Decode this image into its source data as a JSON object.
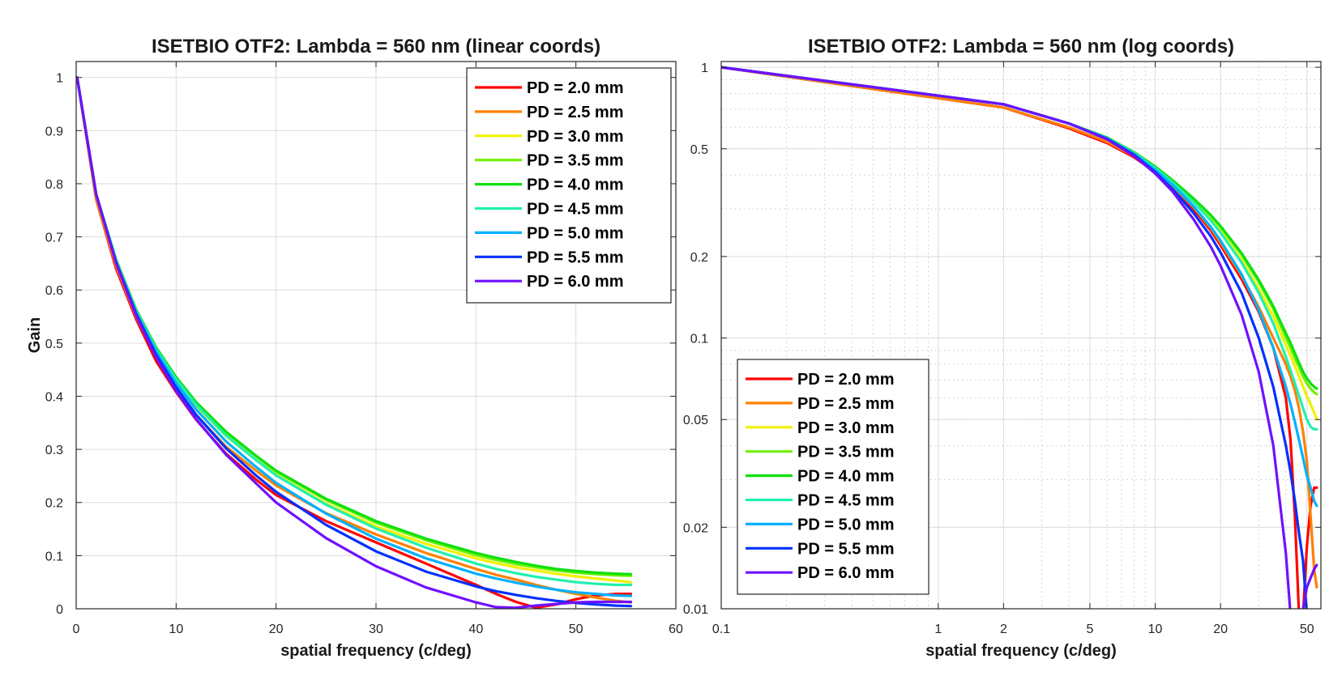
{
  "colors": {
    "PD = 2.0 mm": "#ff0000",
    "PD = 2.5 mm": "#ff8000",
    "PD = 3.0 mm": "#f0f000",
    "PD = 3.5 mm": "#70f000",
    "PD = 4.0 mm": "#10e010",
    "PD = 4.5 mm": "#20f0b0",
    "PD = 5.0 mm": "#00b0ff",
    "PD = 5.5 mm": "#0030ff",
    "PD = 6.0 mm": "#7010ff"
  },
  "chart_data": [
    {
      "type": "line",
      "title": "ISETBIO OTF2: Lambda = 560 nm (linear coords)",
      "xlabel": "spatial frequency (c/deg)",
      "ylabel": "Gain",
      "xlim": [
        0,
        60
      ],
      "ylim": [
        0,
        1.03
      ],
      "xscale": "linear",
      "yscale": "linear",
      "xticks": [
        0,
        10,
        20,
        30,
        40,
        50,
        60
      ],
      "xticklabels": [
        "0",
        "10",
        "20",
        "30",
        "40",
        "50",
        "60"
      ],
      "yticks": [
        0,
        0.1,
        0.2,
        0.3,
        0.4,
        0.5,
        0.6,
        0.7,
        0.8,
        0.9,
        1
      ],
      "yticklabels": [
        "0",
        "0.1",
        "0.2",
        "0.3",
        "0.4",
        "0.5",
        "0.6",
        "0.7",
        "0.8",
        "0.9",
        "1"
      ],
      "grid": true,
      "legend": "top-right",
      "x": [
        0.1,
        2,
        4,
        6,
        8,
        10,
        12,
        15,
        18,
        20,
        25,
        30,
        35,
        40,
        42,
        44,
        46,
        48,
        50,
        52,
        54,
        55.5
      ],
      "series": [
        {
          "name": "PD = 2.0 mm",
          "values": [
            1.0,
            0.77,
            0.64,
            0.545,
            0.466,
            0.408,
            0.356,
            0.292,
            0.243,
            0.214,
            0.165,
            0.125,
            0.085,
            0.045,
            0.028,
            0.013,
            0.002,
            0.008,
            0.018,
            0.025,
            0.028,
            0.028
          ]
        },
        {
          "name": "PD = 2.5 mm",
          "values": [
            1.0,
            0.77,
            0.645,
            0.55,
            0.475,
            0.415,
            0.365,
            0.305,
            0.26,
            0.232,
            0.18,
            0.14,
            0.105,
            0.075,
            0.064,
            0.055,
            0.045,
            0.036,
            0.028,
            0.021,
            0.015,
            0.012
          ]
        },
        {
          "name": "PD = 3.0 mm",
          "values": [
            1.0,
            0.78,
            0.655,
            0.56,
            0.488,
            0.43,
            0.382,
            0.325,
            0.28,
            0.252,
            0.198,
            0.155,
            0.122,
            0.095,
            0.086,
            0.078,
            0.072,
            0.066,
            0.061,
            0.057,
            0.053,
            0.05
          ]
        },
        {
          "name": "PD = 3.5 mm",
          "values": [
            1.0,
            0.78,
            0.657,
            0.563,
            0.492,
            0.435,
            0.388,
            0.332,
            0.287,
            0.258,
            0.205,
            0.162,
            0.129,
            0.101,
            0.092,
            0.084,
            0.078,
            0.072,
            0.068,
            0.065,
            0.063,
            0.062
          ]
        },
        {
          "name": "PD = 4.0 mm",
          "values": [
            1.0,
            0.78,
            0.657,
            0.563,
            0.492,
            0.436,
            0.389,
            0.333,
            0.288,
            0.26,
            0.207,
            0.165,
            0.132,
            0.105,
            0.096,
            0.088,
            0.081,
            0.075,
            0.071,
            0.068,
            0.066,
            0.065
          ]
        },
        {
          "name": "PD = 4.5 mm",
          "values": [
            1.0,
            0.78,
            0.655,
            0.561,
            0.489,
            0.432,
            0.384,
            0.326,
            0.28,
            0.251,
            0.196,
            0.151,
            0.115,
            0.085,
            0.075,
            0.067,
            0.06,
            0.055,
            0.05,
            0.047,
            0.045,
            0.045
          ]
        },
        {
          "name": "PD = 5.0 mm",
          "values": [
            1.0,
            0.78,
            0.653,
            0.558,
            0.484,
            0.425,
            0.375,
            0.315,
            0.267,
            0.237,
            0.179,
            0.132,
            0.095,
            0.066,
            0.057,
            0.049,
            0.042,
            0.036,
            0.031,
            0.028,
            0.025,
            0.024
          ]
        },
        {
          "name": "PD = 5.5 mm",
          "values": [
            1.0,
            0.78,
            0.652,
            0.555,
            0.478,
            0.417,
            0.365,
            0.302,
            0.251,
            0.22,
            0.158,
            0.108,
            0.07,
            0.042,
            0.033,
            0.026,
            0.02,
            0.015,
            0.011,
            0.008,
            0.006,
            0.005
          ]
        },
        {
          "name": "PD = 6.0 mm",
          "values": [
            1.0,
            0.78,
            0.65,
            0.552,
            0.473,
            0.41,
            0.357,
            0.29,
            0.236,
            0.2,
            0.133,
            0.08,
            0.04,
            0.012,
            0.003,
            0.002,
            0.006,
            0.009,
            0.012,
            0.013,
            0.013,
            0.013
          ]
        }
      ]
    },
    {
      "type": "line",
      "title": "ISETBIO OTF2: Lambda = 560 nm (log coords)",
      "xlabel": "spatial frequency (c/deg)",
      "ylabel": "",
      "xlim": [
        0.1,
        58
      ],
      "ylim": [
        0.01,
        1.05
      ],
      "xscale": "log",
      "yscale": "log",
      "xticks": [
        0.1,
        1,
        2,
        5,
        10,
        20,
        50
      ],
      "xticklabels": [
        "0.1",
        "1",
        "2",
        "5",
        "10",
        "20",
        "50"
      ],
      "yticks": [
        0.01,
        0.02,
        0.05,
        0.1,
        0.2,
        0.5,
        1
      ],
      "yticklabels": [
        "0.01",
        "0.02",
        "0.05",
        "0.1",
        "0.2",
        "0.5",
        "1"
      ],
      "grid": true,
      "legend": "bottom-left",
      "x": [
        0.1,
        2,
        4,
        6,
        8,
        10,
        12,
        15,
        18,
        20,
        25,
        30,
        35,
        40,
        42,
        44,
        46,
        48,
        50,
        52,
        54,
        55.5
      ],
      "series": [
        {
          "name": "PD = 2.0 mm",
          "values": [
            1.0,
            0.71,
            0.595,
            0.525,
            0.465,
            0.41,
            0.36,
            0.3,
            0.25,
            0.22,
            0.165,
            0.125,
            0.092,
            0.06,
            0.042,
            0.022,
            0.0095,
            0.0095,
            0.017,
            0.024,
            0.028,
            0.028
          ]
        },
        {
          "name": "PD = 2.5 mm",
          "values": [
            1.0,
            0.71,
            0.6,
            0.53,
            0.47,
            0.415,
            0.365,
            0.305,
            0.255,
            0.225,
            0.17,
            0.13,
            0.1,
            0.08,
            0.072,
            0.064,
            0.055,
            0.045,
            0.035,
            0.022,
            0.014,
            0.012
          ]
        },
        {
          "name": "PD = 3.0 mm",
          "values": [
            1.0,
            0.73,
            0.62,
            0.548,
            0.48,
            0.425,
            0.375,
            0.318,
            0.275,
            0.248,
            0.194,
            0.152,
            0.12,
            0.094,
            0.086,
            0.079,
            0.072,
            0.066,
            0.061,
            0.057,
            0.053,
            0.05
          ]
        },
        {
          "name": "PD = 3.5 mm",
          "values": [
            1.0,
            0.73,
            0.62,
            0.55,
            0.485,
            0.43,
            0.382,
            0.326,
            0.283,
            0.257,
            0.203,
            0.161,
            0.128,
            0.1,
            0.092,
            0.084,
            0.078,
            0.072,
            0.068,
            0.065,
            0.063,
            0.062
          ]
        },
        {
          "name": "PD = 4.0 mm",
          "values": [
            1.0,
            0.73,
            0.62,
            0.55,
            0.485,
            0.43,
            0.383,
            0.328,
            0.285,
            0.259,
            0.206,
            0.164,
            0.131,
            0.104,
            0.096,
            0.088,
            0.081,
            0.075,
            0.071,
            0.068,
            0.066,
            0.065
          ]
        },
        {
          "name": "PD = 4.5 mm",
          "values": [
            1.0,
            0.73,
            0.62,
            0.548,
            0.482,
            0.425,
            0.376,
            0.318,
            0.272,
            0.245,
            0.19,
            0.147,
            0.113,
            0.085,
            0.076,
            0.068,
            0.061,
            0.055,
            0.05,
            0.047,
            0.046,
            0.046
          ]
        },
        {
          "name": "PD = 5.0 mm",
          "values": [
            1.0,
            0.73,
            0.62,
            0.546,
            0.478,
            0.418,
            0.368,
            0.307,
            0.258,
            0.229,
            0.172,
            0.127,
            0.092,
            0.066,
            0.057,
            0.049,
            0.042,
            0.036,
            0.031,
            0.028,
            0.025,
            0.024
          ]
        },
        {
          "name": "PD = 5.5 mm",
          "values": [
            1.0,
            0.73,
            0.62,
            0.544,
            0.474,
            0.41,
            0.355,
            0.29,
            0.238,
            0.207,
            0.147,
            0.1,
            0.066,
            0.04,
            0.032,
            0.025,
            0.019,
            0.015,
            0.0095,
            0.0095,
            0.0095,
            0.0095
          ]
        },
        {
          "name": "PD = 6.0 mm",
          "values": [
            1.0,
            0.73,
            0.62,
            0.542,
            0.47,
            0.405,
            0.348,
            0.275,
            0.218,
            0.185,
            0.122,
            0.075,
            0.04,
            0.016,
            0.0095,
            0.0095,
            0.0095,
            0.01,
            0.012,
            0.013,
            0.014,
            0.0145
          ]
        }
      ]
    }
  ]
}
